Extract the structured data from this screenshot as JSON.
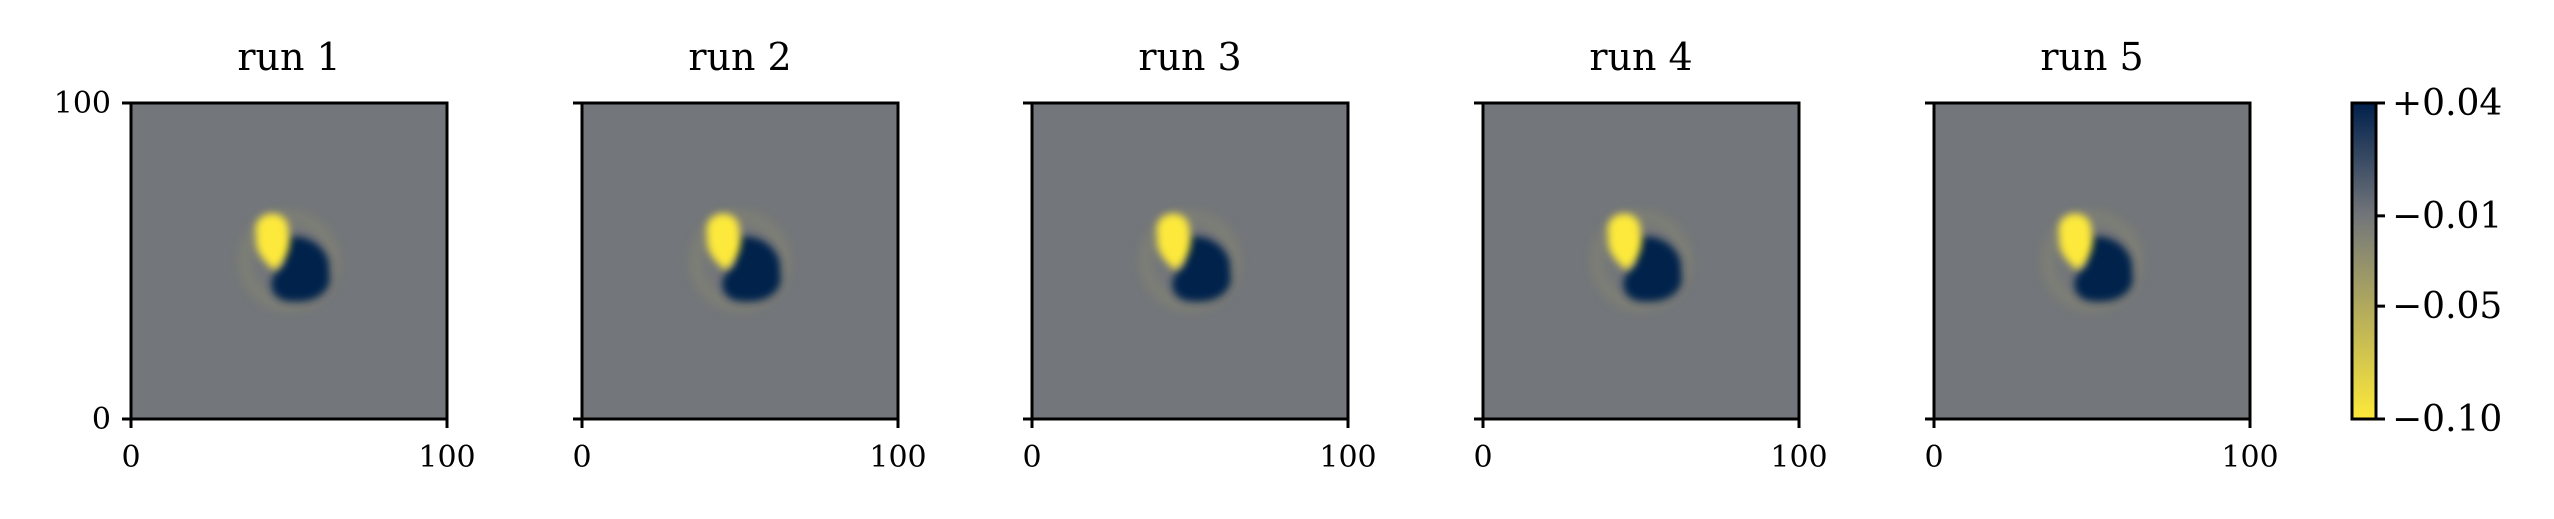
{
  "chart_data": {
    "type": "heatmap",
    "panels": [
      {
        "title": "run 1",
        "xlim": [
          0,
          100
        ],
        "ylim": [
          0,
          100
        ],
        "xticks": [
          "0",
          "100"
        ],
        "yticks": [
          "0",
          "100"
        ]
      },
      {
        "title": "run 2",
        "xlim": [
          0,
          100
        ],
        "ylim": [
          0,
          100
        ],
        "xticks": [
          "0",
          "100"
        ],
        "yticks": []
      },
      {
        "title": "run 3",
        "xlim": [
          0,
          100
        ],
        "ylim": [
          0,
          100
        ],
        "xticks": [
          "0",
          "100"
        ],
        "yticks": []
      },
      {
        "title": "run 4",
        "xlim": [
          0,
          100
        ],
        "ylim": [
          0,
          100
        ],
        "xticks": [
          "0",
          "100"
        ],
        "yticks": []
      },
      {
        "title": "run 5",
        "xlim": [
          0,
          100
        ],
        "ylim": [
          0,
          100
        ],
        "xticks": [
          "0",
          "100"
        ],
        "yticks": []
      }
    ],
    "field": {
      "background_value": -0.01,
      "features": [
        {
          "kind": "positive_blob",
          "center": [
            55,
            48
          ],
          "value": 0.04
        },
        {
          "kind": "negative_blob",
          "center": [
            46,
            56
          ],
          "value": -0.1
        },
        {
          "kind": "faint_ring",
          "center": [
            50,
            50
          ],
          "radius": 14,
          "value": -0.03
        }
      ]
    },
    "colorbar": {
      "colormap": "cividis_r",
      "range": [
        -0.1,
        0.04
      ],
      "ticks": [
        0.04,
        -0.01,
        -0.05,
        -0.1
      ],
      "tick_labels": [
        "+0.04",
        "−0.01",
        "−0.05",
        "−0.10"
      ],
      "colors": {
        "high": "#00204c",
        "mid": "#73767a",
        "low": "#fde93a"
      }
    }
  }
}
